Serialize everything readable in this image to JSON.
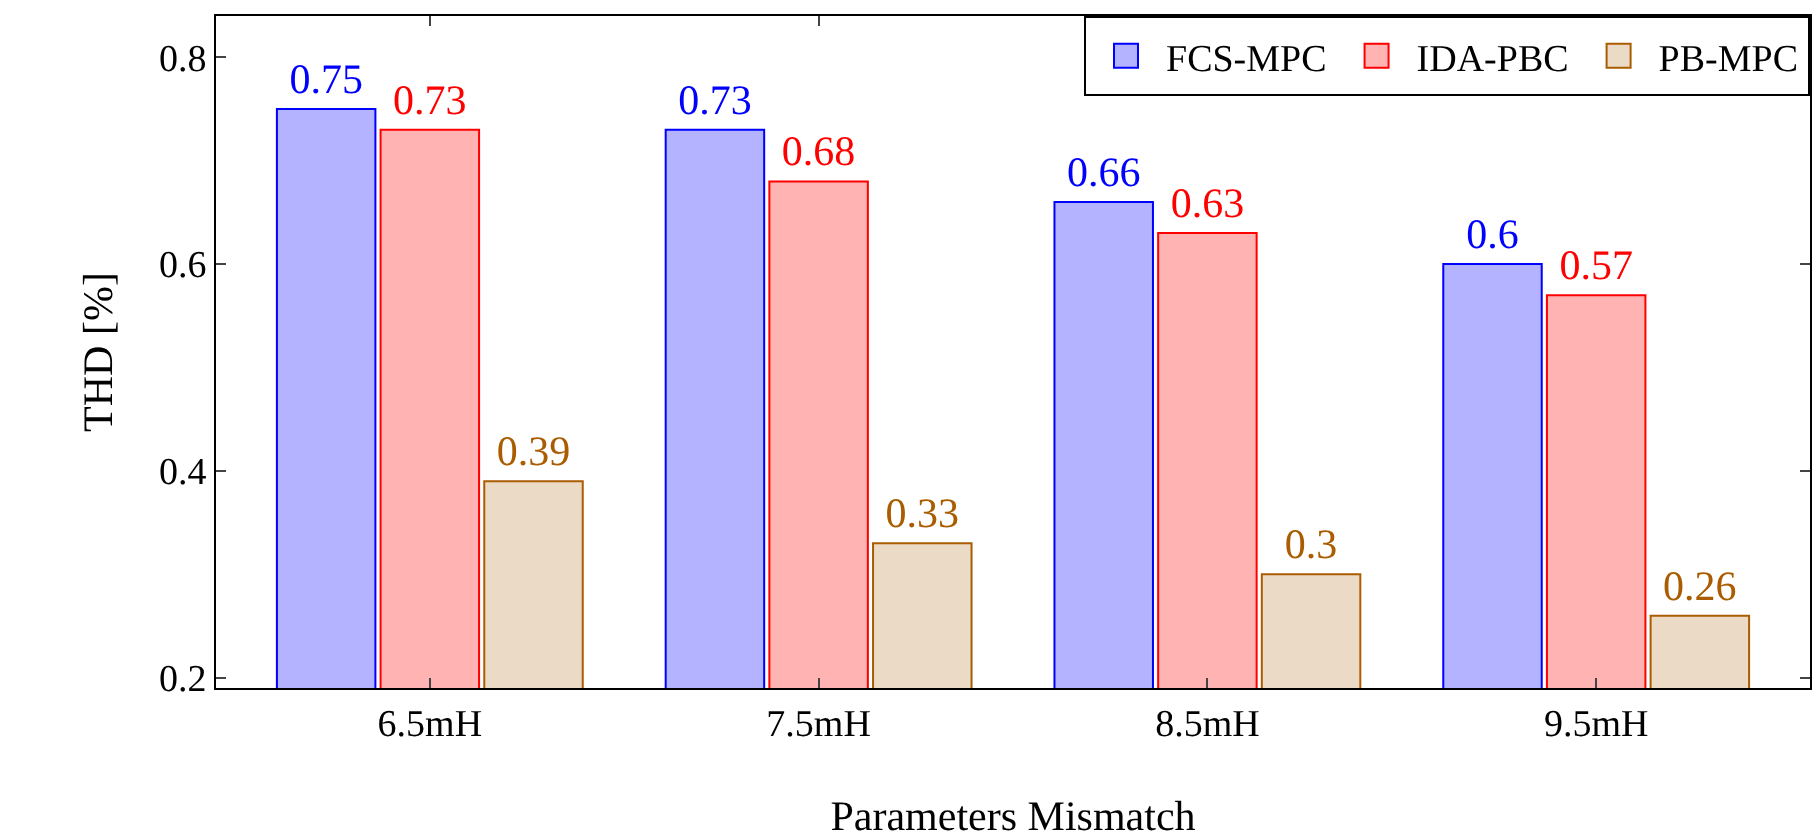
{
  "chart_data": {
    "type": "bar",
    "xlabel": "Parameters Mismatch",
    "ylabel": "THD [%]",
    "categories": [
      "6.5mH",
      "7.5mH",
      "8.5mH",
      "9.5mH"
    ],
    "series": [
      {
        "name": "FCS-MPC",
        "color": "#b3b3ff",
        "values": [
          0.75,
          0.73,
          0.66,
          0.6
        ]
      },
      {
        "name": "IDA-PBC",
        "color": "#ffb3b3",
        "values": [
          0.73,
          0.68,
          0.63,
          0.57
        ]
      },
      {
        "name": "PB-MPC",
        "color": "#ebdac6",
        "values": [
          0.39,
          0.33,
          0.3,
          0.26
        ]
      }
    ],
    "ylim": [
      0.19,
      0.84
    ],
    "yticks": [
      0.2,
      0.4,
      0.6,
      0.8
    ],
    "grid": false,
    "legend": "top right",
    "data_labels": true
  }
}
